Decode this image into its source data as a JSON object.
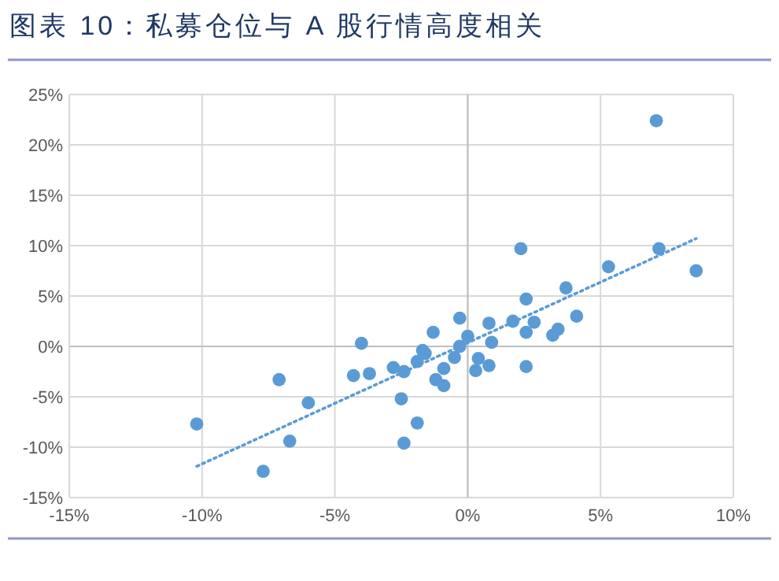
{
  "chart_data": {
    "type": "scatter",
    "title": "图表 10：私募仓位与 A 股行情高度相关",
    "xlim": [
      -15,
      10
    ],
    "xticks": [
      {
        "value": -15,
        "label": "-15%"
      },
      {
        "value": -10,
        "label": "-10%"
      },
      {
        "value": -5,
        "label": "-5%"
      },
      {
        "value": 0,
        "label": "0%"
      },
      {
        "value": 5,
        "label": "5%"
      },
      {
        "value": 10,
        "label": "10%"
      }
    ],
    "ylim": [
      -15,
      25
    ],
    "yticks": [
      {
        "value": -15,
        "label": "-15%"
      },
      {
        "value": -10,
        "label": "-10%"
      },
      {
        "value": -5,
        "label": "-5%"
      },
      {
        "value": 0,
        "label": "0%"
      },
      {
        "value": 5,
        "label": "5%"
      },
      {
        "value": 10,
        "label": "10%"
      },
      {
        "value": 15,
        "label": "15%"
      },
      {
        "value": 20,
        "label": "20%"
      },
      {
        "value": 25,
        "label": "25%"
      }
    ],
    "grid": true,
    "series": [
      {
        "marker": "circle",
        "color": "#5b9bd5",
        "x": [
          -10.2,
          -7.1,
          -6.0,
          -6.7,
          -7.7,
          -4.3,
          -4.0,
          -3.7,
          -2.8,
          -2.4,
          -2.5,
          -1.9,
          -2.4,
          -1.9,
          -1.7,
          -1.6,
          -1.3,
          -1.2,
          -0.9,
          -0.9,
          -0.5,
          -0.3,
          0.0,
          -0.3,
          0.4,
          0.3,
          0.8,
          0.8,
          0.9,
          1.7,
          2.0,
          2.2,
          2.2,
          2.5,
          2.2,
          3.2,
          3.4,
          3.7,
          4.1,
          5.3,
          7.1,
          7.2,
          8.6
        ],
        "values": [
          -7.7,
          -3.3,
          -5.6,
          -9.4,
          -12.4,
          -2.9,
          0.3,
          -2.7,
          -2.1,
          -2.5,
          -5.2,
          -7.6,
          -9.6,
          -1.5,
          -0.4,
          -0.7,
          1.4,
          -3.3,
          -3.9,
          -2.2,
          -1.1,
          2.8,
          1.0,
          0.0,
          -1.2,
          -2.4,
          -1.9,
          2.3,
          0.4,
          2.5,
          9.7,
          4.7,
          1.4,
          2.4,
          -2.0,
          1.1,
          1.7,
          5.8,
          3.0,
          7.9,
          22.4,
          9.7,
          7.5
        ]
      },
      {
        "type": "line",
        "color": "#5b9bd5",
        "line_style": "dotted",
        "x": [
          -10.2,
          8.6
        ],
        "values": [
          -11.9,
          10.7
        ]
      }
    ]
  }
}
